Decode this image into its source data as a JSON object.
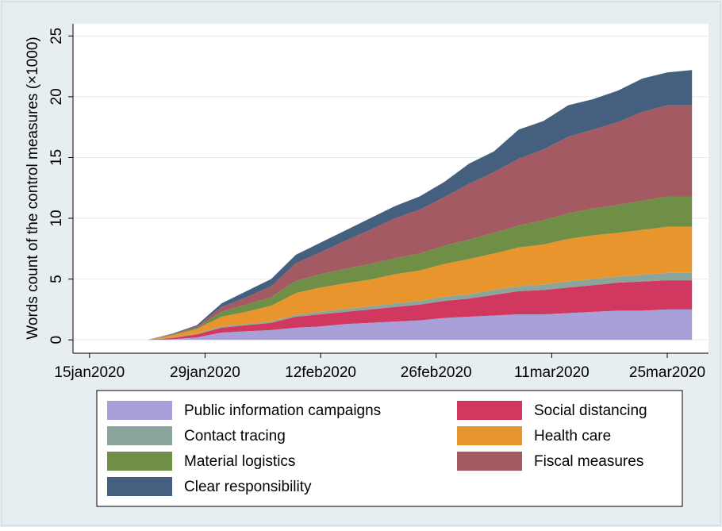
{
  "chart_data": {
    "type": "stacked_area",
    "ylabel": "Words count of the control measures (×1000)",
    "x": [
      "22jan2020",
      "25jan2020",
      "28jan2020",
      "31jan2020",
      "03feb2020",
      "06feb2020",
      "09feb2020",
      "12feb2020",
      "15feb2020",
      "18feb2020",
      "21feb2020",
      "24feb2020",
      "27feb2020",
      "01mar2020",
      "04mar2020",
      "07mar2020",
      "10mar2020",
      "13mar2020",
      "16mar2020",
      "19mar2020",
      "22mar2020",
      "25mar2020",
      "28mar2020"
    ],
    "series": [
      {
        "name": "Public information campaigns",
        "color": "#a99fd9",
        "values": [
          0,
          0.05,
          0.2,
          0.6,
          0.7,
          0.8,
          1.0,
          1.1,
          1.3,
          1.4,
          1.5,
          1.6,
          1.8,
          1.9,
          2.0,
          2.1,
          2.1,
          2.2,
          2.3,
          2.4,
          2.4,
          2.5,
          2.5
        ]
      },
      {
        "name": "Social distancing",
        "color": "#d1385f",
        "values": [
          0,
          0.1,
          0.25,
          0.4,
          0.5,
          0.6,
          0.9,
          1.0,
          1.0,
          1.1,
          1.2,
          1.3,
          1.4,
          1.5,
          1.7,
          1.9,
          2.0,
          2.1,
          2.2,
          2.3,
          2.4,
          2.4,
          2.4
        ]
      },
      {
        "name": "Contact tracing",
        "color": "#8aa59c",
        "values": [
          0,
          0.02,
          0.05,
          0.1,
          0.1,
          0.1,
          0.15,
          0.2,
          0.25,
          0.25,
          0.3,
          0.3,
          0.35,
          0.35,
          0.4,
          0.4,
          0.45,
          0.5,
          0.5,
          0.5,
          0.55,
          0.6,
          0.6
        ]
      },
      {
        "name": "Health care",
        "color": "#e8952e",
        "values": [
          0,
          0.2,
          0.4,
          0.8,
          1.0,
          1.3,
          1.8,
          2.0,
          2.1,
          2.2,
          2.4,
          2.5,
          2.7,
          2.9,
          3.0,
          3.2,
          3.3,
          3.5,
          3.6,
          3.6,
          3.7,
          3.8,
          3.8
        ]
      },
      {
        "name": "Material logistics",
        "color": "#6f8f47",
        "values": [
          0,
          0.05,
          0.1,
          0.4,
          0.6,
          0.7,
          1.0,
          1.1,
          1.2,
          1.3,
          1.3,
          1.4,
          1.5,
          1.6,
          1.7,
          1.8,
          2.0,
          2.1,
          2.2,
          2.3,
          2.4,
          2.5,
          2.5
        ]
      },
      {
        "name": "Fiscal measures",
        "color": "#a35a62",
        "values": [
          0,
          0.05,
          0.1,
          0.4,
          0.6,
          0.9,
          1.45,
          1.8,
          2.3,
          2.8,
          3.3,
          3.6,
          4.0,
          4.6,
          5.0,
          5.5,
          5.8,
          6.3,
          6.5,
          6.8,
          7.3,
          7.5,
          7.5
        ]
      },
      {
        "name": "Clear responsibility",
        "color": "#45607f",
        "values": [
          0,
          0.03,
          0.1,
          0.3,
          0.5,
          0.6,
          0.7,
          0.8,
          0.85,
          0.95,
          1.0,
          1.1,
          1.25,
          1.65,
          1.7,
          2.4,
          2.35,
          2.6,
          2.5,
          2.6,
          2.75,
          2.7,
          2.9
        ]
      }
    ],
    "xlim": [
      "13jan2020",
      "30mar2020"
    ],
    "xticks": [
      "15jan2020",
      "29jan2020",
      "12feb2020",
      "26feb2020",
      "11mar2020",
      "25mar2020"
    ],
    "ylim": [
      -1.1,
      26
    ],
    "yticks": [
      0,
      5,
      10,
      15,
      20,
      25
    ],
    "grid": true
  }
}
